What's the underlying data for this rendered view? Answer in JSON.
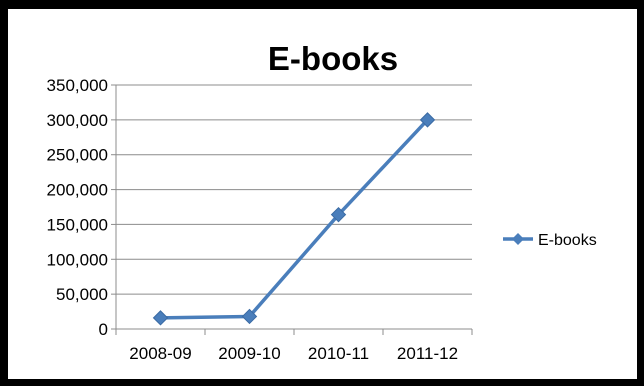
{
  "chart_data": {
    "type": "line",
    "title": "E-books",
    "categories": [
      "2008-09",
      "2009-10",
      "2010-11",
      "2011-12"
    ],
    "series": [
      {
        "name": "E-books",
        "values": [
          16000,
          18000,
          164000,
          300000
        ]
      }
    ],
    "ylim": [
      0,
      350000
    ],
    "y_ticks": [
      "0",
      "50,000",
      "100,000",
      "150,000",
      "200,000",
      "250,000",
      "300,000",
      "350,000"
    ],
    "grid": true,
    "legend_position": "right",
    "series_color": "#4a7ebb"
  }
}
